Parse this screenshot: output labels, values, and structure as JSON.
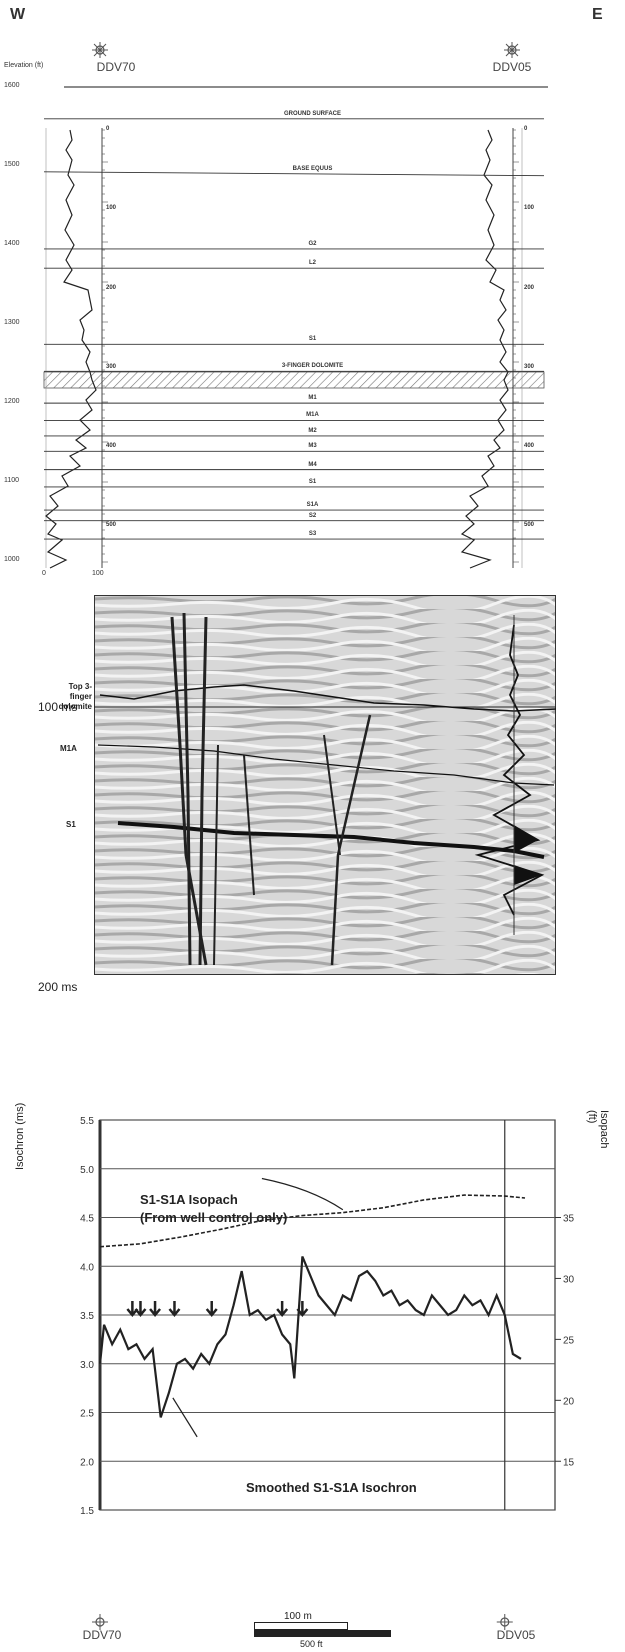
{
  "header": {
    "west": "W",
    "east": "E"
  },
  "wells": {
    "left": "DDV70",
    "right": "DDV05"
  },
  "cross_section": {
    "elevation_label": "Elevation (ft)",
    "elevations": [
      "1600",
      "1500",
      "1400",
      "1300",
      "1200",
      "1100",
      "1000"
    ],
    "left_track_ticks": [
      "0",
      "100",
      "200",
      "300",
      "400",
      "500"
    ],
    "right_track_ticks": [
      "0",
      "100",
      "200",
      "300",
      "400",
      "500"
    ],
    "log_scale": [
      "0",
      "100"
    ],
    "horizons": [
      {
        "name": "GROUND SURFACE",
        "left_elev": 1567,
        "right_elev": 1567
      },
      {
        "name": "BASE EQUUS",
        "left_elev": 1512,
        "right_elev": 1508
      },
      {
        "name": "G2",
        "left_elev": 1432,
        "right_elev": 1432
      },
      {
        "name": "L2",
        "left_elev": 1412,
        "right_elev": 1412
      },
      {
        "name": "S1",
        "left_elev": 1333,
        "right_elev": 1333
      },
      {
        "name": "3-FINGER DOLOMITE",
        "left_elev": 1305,
        "right_elev": 1305
      },
      {
        "name": "M1",
        "left_elev": 1272,
        "right_elev": 1272
      },
      {
        "name": "M1A",
        "left_elev": 1254,
        "right_elev": 1254
      },
      {
        "name": "M2",
        "left_elev": 1238,
        "right_elev": 1238
      },
      {
        "name": "M3",
        "left_elev": 1222,
        "right_elev": 1222
      },
      {
        "name": "M4",
        "left_elev": 1203,
        "right_elev": 1203
      },
      {
        "name": "S1",
        "left_elev": 1185,
        "right_elev": 1185
      },
      {
        "name": "S1A",
        "left_elev": 1161,
        "right_elev": 1161
      },
      {
        "name": "S2",
        "left_elev": 1150,
        "right_elev": 1150
      },
      {
        "name": "S3",
        "left_elev": 1131,
        "right_elev": 1131
      }
    ]
  },
  "seismic": {
    "labels": [
      "Top 3-finger dolomite",
      "M1A",
      "S1"
    ],
    "top_time": "100 ms",
    "bottom_time": "200 ms"
  },
  "chart_data": {
    "type": "line",
    "xlabel": "",
    "ylabel": "Isochron (ms)",
    "y2label": "Isopach (ft)",
    "ylim": [
      1.5,
      5.5
    ],
    "yticks": [
      "1.5",
      "2.0",
      "2.5",
      "3.0",
      "3.5",
      "4.0",
      "4.5",
      "5.0",
      "5.5"
    ],
    "y2ticks": [
      "15",
      "20",
      "25",
      "30",
      "35"
    ],
    "x_wells": [
      "DDV70",
      "DDV05"
    ],
    "series": [
      {
        "name": "S1-S1A Isopach",
        "x": [
          0,
          50,
          100,
          150,
          200,
          250,
          300,
          350,
          400,
          450,
          500,
          525
        ],
        "values": [
          4.2,
          4.23,
          4.3,
          4.38,
          4.47,
          4.52,
          4.55,
          4.6,
          4.68,
          4.73,
          4.72,
          4.7
        ]
      },
      {
        "name": "Smoothed S1-S1A Isochron",
        "x": [
          0,
          5,
          15,
          25,
          35,
          45,
          55,
          65,
          75,
          85,
          95,
          105,
          115,
          125,
          135,
          145,
          155,
          165,
          175,
          185,
          195,
          205,
          215,
          225,
          235,
          240,
          250,
          260,
          270,
          280,
          290,
          300,
          310,
          320,
          330,
          340,
          350,
          360,
          370,
          380,
          390,
          400,
          410,
          420,
          430,
          440,
          450,
          460,
          470,
          480,
          490,
          500,
          510,
          520
        ],
        "values": [
          3.0,
          3.4,
          3.2,
          3.35,
          3.15,
          3.2,
          3.05,
          3.15,
          2.45,
          2.7,
          3.0,
          3.05,
          2.95,
          3.1,
          3.0,
          3.2,
          3.3,
          3.6,
          3.95,
          3.5,
          3.55,
          3.45,
          3.5,
          3.3,
          3.2,
          2.85,
          4.1,
          3.9,
          3.7,
          3.6,
          3.5,
          3.7,
          3.65,
          3.9,
          3.95,
          3.85,
          3.7,
          3.75,
          3.6,
          3.65,
          3.55,
          3.5,
          3.7,
          3.6,
          3.5,
          3.55,
          3.7,
          3.6,
          3.65,
          3.5,
          3.7,
          3.5,
          3.1,
          3.05
        ]
      }
    ],
    "annotations": [
      "S1-S1A Isopach",
      "(From well control only)",
      "Smoothed S1-S1A Isochron"
    ],
    "scale_bar": {
      "metric": "100 m",
      "imperial": "500 ft"
    },
    "grid": true
  }
}
